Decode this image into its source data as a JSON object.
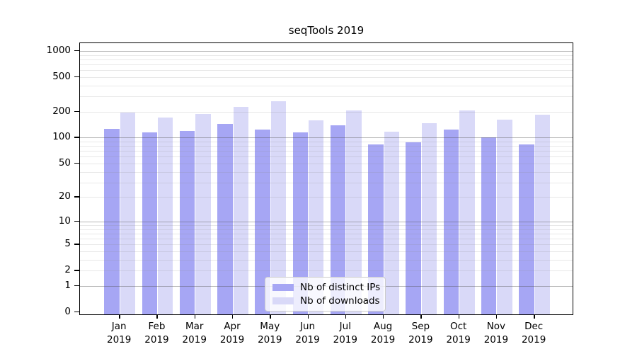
{
  "chart_data": {
    "type": "bar",
    "title": "seqTools 2019",
    "categories": [
      "Jan",
      "Feb",
      "Mar",
      "Apr",
      "May",
      "Jun",
      "Jul",
      "Aug",
      "Sep",
      "Oct",
      "Nov",
      "Dec"
    ],
    "category_year": "2019",
    "series": [
      {
        "name": "Nb of distinct IPs",
        "color": "#a6a6f4",
        "values": [
          123,
          111,
          115,
          139,
          119,
          111,
          133,
          80,
          85,
          120,
          98,
          80
        ]
      },
      {
        "name": "Nb of downloads",
        "color": "#d9d9f8",
        "values": [
          188,
          165,
          181,
          220,
          252,
          153,
          198,
          113,
          141,
          198,
          156,
          179
        ]
      }
    ],
    "y_axis": {
      "scale": "log1p",
      "ticks": [
        0,
        1,
        2,
        5,
        10,
        20,
        50,
        100,
        200,
        500,
        1000
      ],
      "gridlines_major": [
        1,
        10,
        100,
        1000
      ],
      "gridlines_minor": [
        2,
        3,
        4,
        5,
        6,
        7,
        8,
        9,
        20,
        30,
        40,
        50,
        60,
        70,
        80,
        90,
        200,
        300,
        400,
        500,
        600,
        700,
        800,
        900
      ]
    },
    "ylim": [
      0,
      1220
    ],
    "grid": true,
    "legend_position": "bottom-center",
    "colors": {
      "axis": "#000000",
      "background": "#ffffff",
      "legend_border": "#cccccc"
    }
  }
}
